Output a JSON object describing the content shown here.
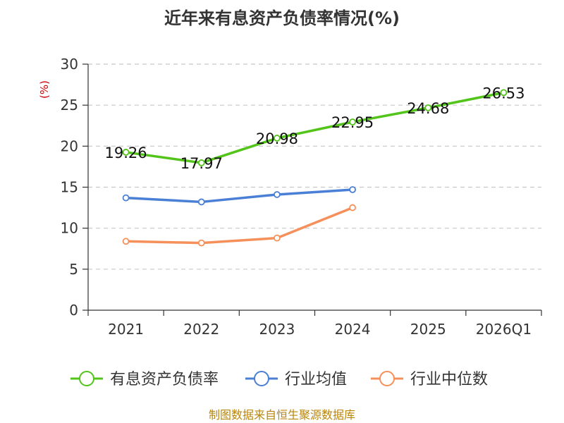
{
  "chart_data": {
    "type": "line",
    "title": "近年来有息资产负债率情况(%)",
    "ylabel": "(%)",
    "categories": [
      "2021",
      "2022",
      "2023",
      "2024",
      "2025",
      "2026Q1"
    ],
    "ylim": [
      0,
      30
    ],
    "yticks": [
      0,
      5,
      10,
      15,
      20,
      25,
      30
    ],
    "grid": true,
    "legend_position": "bottom",
    "series": [
      {
        "name": "有息资产负债率",
        "color": "#52c41a",
        "values": [
          19.26,
          17.97,
          20.98,
          22.95,
          24.68,
          26.53
        ],
        "labels": [
          "19.26",
          "17.97",
          "20.98",
          "22.95",
          "24.68",
          "26.53"
        ]
      },
      {
        "name": "行业均值",
        "color": "#4a7fd6",
        "values": [
          13.7,
          13.2,
          14.1,
          14.7,
          null,
          null
        ]
      },
      {
        "name": "行业中位数",
        "color": "#f5905a",
        "values": [
          8.4,
          8.2,
          8.8,
          12.5,
          null,
          null
        ]
      }
    ],
    "source": "制图数据来自恒生聚源数据库"
  }
}
